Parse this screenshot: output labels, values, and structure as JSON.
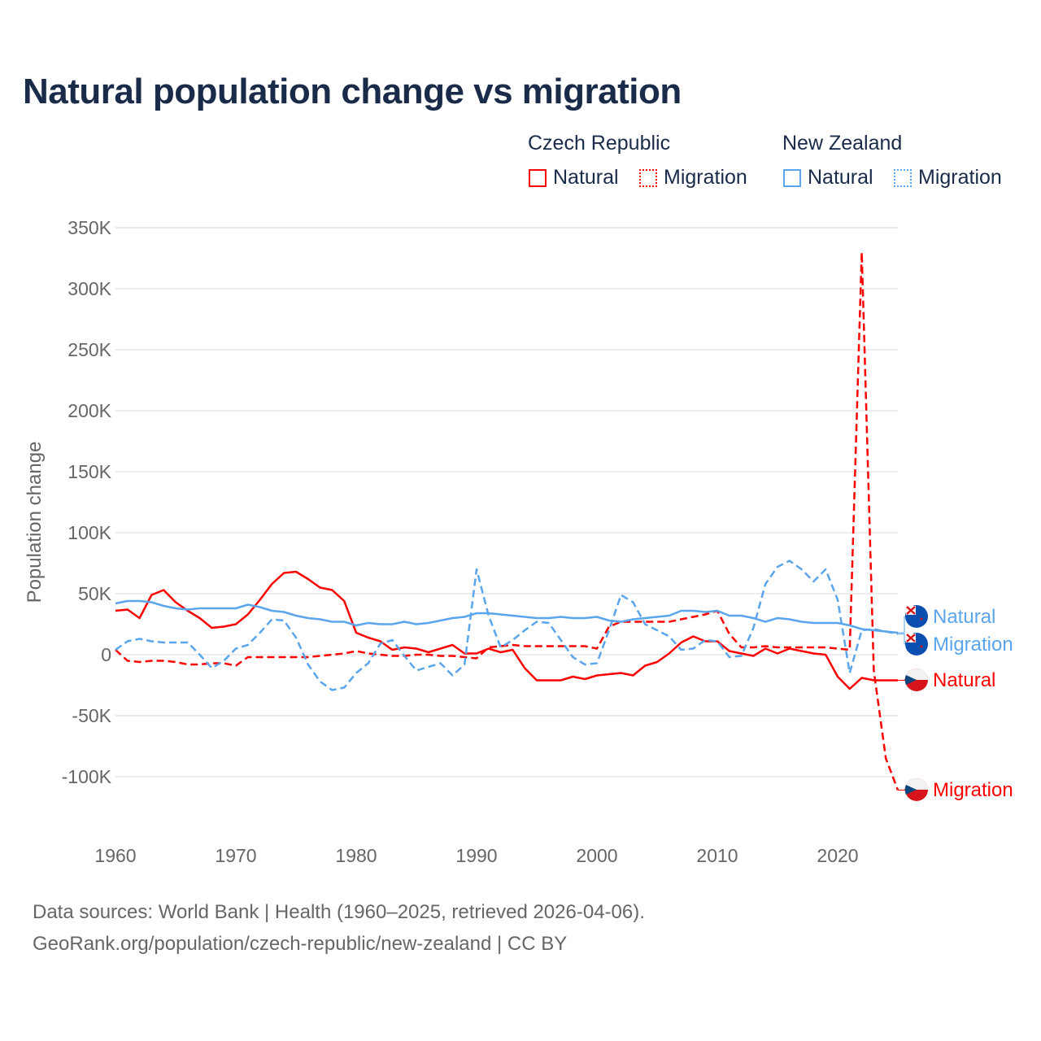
{
  "title": "Natural population change vs migration",
  "legend": {
    "groups": [
      {
        "name": "Czech Republic",
        "color": "#ff0000",
        "items": [
          "Natural",
          "Migration"
        ]
      },
      {
        "name": "New Zealand",
        "color": "#5aa5ec",
        "items": [
          "Natural",
          "Migration"
        ]
      }
    ]
  },
  "footer": {
    "line1": "Data sources: World Bank | Health (1960–2025, retrieved 2026-04-06).",
    "line2": "GeoRank.org/population/czech-republic/new-zealand | CC BY"
  },
  "chart_data": {
    "type": "line",
    "title": "Natural population change vs migration",
    "xlabel": "",
    "ylabel": "Population change",
    "xlim": [
      1960,
      2025
    ],
    "ylim": [
      -125000,
      350000
    ],
    "x_ticks": [
      1960,
      1970,
      1980,
      1990,
      2000,
      2010,
      2020
    ],
    "x_tick_labels": [
      "1960",
      "1970",
      "1980",
      "1990",
      "2000",
      "2010",
      "2020"
    ],
    "y_ticks": [
      -100000,
      -50000,
      0,
      50000,
      100000,
      150000,
      200000,
      250000,
      300000,
      350000
    ],
    "y_tick_labels": [
      "-100K",
      "-50K",
      "0",
      "50K",
      "100K",
      "150K",
      "200K",
      "250K",
      "300K",
      "350K"
    ],
    "grid": true,
    "legend_position": "top-right",
    "x_start": 1960,
    "unit": "thousands",
    "series": [
      {
        "name": "Czech Republic Natural",
        "label": "Natural",
        "color": "#ff0000",
        "dash": false,
        "values": [
          36,
          37,
          30,
          49,
          53,
          43,
          36,
          30,
          22,
          23,
          25,
          33,
          45,
          58,
          67,
          68,
          62,
          55,
          53,
          44,
          18,
          14,
          11,
          4,
          6,
          5,
          2,
          5,
          8,
          1,
          1,
          5,
          2,
          4,
          -11,
          -21,
          -21,
          -21,
          -18,
          -20,
          -17,
          -16,
          -15,
          -17,
          -9,
          -6,
          1,
          10,
          15,
          11,
          11,
          3,
          1,
          -1,
          5,
          1,
          5,
          3,
          1,
          0,
          -18,
          -28,
          -19,
          -21,
          -21,
          -21
        ]
      },
      {
        "name": "Czech Republic Migration",
        "label": "Migration",
        "color": "#ff0000",
        "dash": true,
        "values": [
          4,
          -5,
          -6,
          -5,
          -5,
          -6,
          -8,
          -8,
          -7,
          -7,
          -9,
          -2,
          -2,
          -2,
          -2,
          -2,
          -2,
          -1,
          0,
          1,
          3,
          1,
          0,
          -1,
          -1,
          0,
          0,
          -1,
          -1,
          -2,
          -3,
          6,
          7,
          8,
          7,
          7,
          7,
          7,
          7,
          7,
          5,
          23,
          27,
          27,
          27,
          27,
          27,
          29,
          31,
          33,
          36,
          17,
          6,
          6,
          7,
          6,
          6,
          6,
          6,
          6,
          5,
          4,
          330,
          -13,
          -85,
          -111
        ]
      },
      {
        "name": "New Zealand Natural",
        "label": "Natural",
        "color": "#5aa5ec",
        "dash": false,
        "values": [
          42,
          44,
          44,
          43,
          40,
          38,
          37,
          38,
          38,
          38,
          38,
          41,
          39,
          36,
          35,
          32,
          30,
          29,
          27,
          27,
          24,
          26,
          25,
          25,
          27,
          25,
          26,
          28,
          30,
          31,
          34,
          34,
          33,
          32,
          31,
          30,
          30,
          31,
          30,
          30,
          31,
          28,
          27,
          29,
          30,
          31,
          32,
          36,
          36,
          35,
          36,
          32,
          32,
          30,
          27,
          30,
          29,
          27,
          26,
          26,
          26,
          24,
          21,
          20,
          19,
          18
        ]
      },
      {
        "name": "New Zealand Migration",
        "label": "Migration",
        "color": "#5aa5ec",
        "dash": true,
        "values": [
          4,
          11,
          13,
          11,
          10,
          10,
          10,
          0,
          -11,
          -5,
          5,
          8,
          18,
          29,
          28,
          14,
          -8,
          -22,
          -29,
          -27,
          -15,
          -7,
          9,
          12,
          -1,
          -13,
          -10,
          -7,
          -17,
          -8,
          70,
          32,
          6,
          12,
          20,
          27,
          26,
          12,
          -2,
          -8,
          -7,
          20,
          49,
          43,
          25,
          20,
          15,
          4,
          5,
          12,
          11,
          -2,
          -1,
          22,
          58,
          72,
          77,
          70,
          60,
          70,
          45,
          -15,
          20,
          21,
          19,
          17
        ]
      }
    ]
  }
}
